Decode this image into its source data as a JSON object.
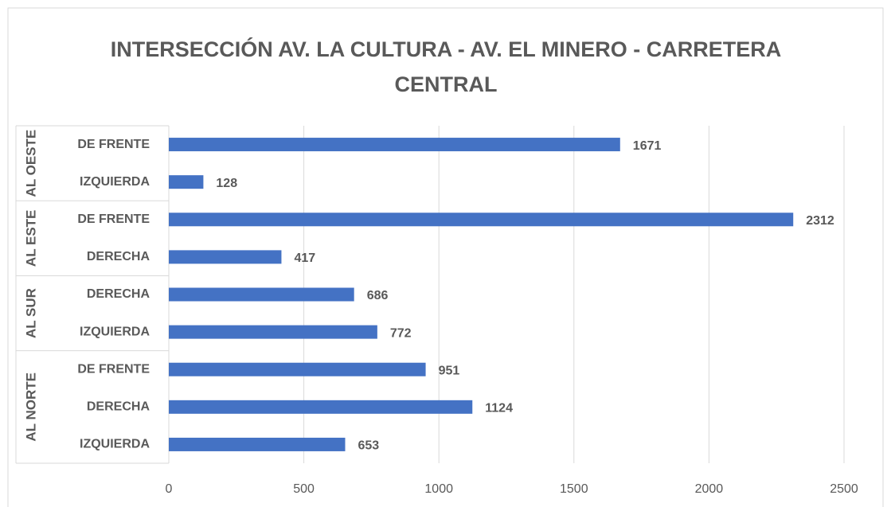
{
  "chart_data": {
    "type": "hbar",
    "title": "INTERSECCIÓN AV. LA CULTURA - AV. EL MINERO - CARRETERA CENTRAL",
    "groups": [
      {
        "name": "AL OESTE",
        "categories": [
          "DE FRENTE",
          "IZQUIERDA"
        ],
        "values": [
          1671,
          128
        ]
      },
      {
        "name": "AL ESTE",
        "categories": [
          "DE FRENTE",
          "DERECHA"
        ],
        "values": [
          2312,
          417
        ]
      },
      {
        "name": "AL SUR",
        "categories": [
          "DERECHA",
          "IZQUIERDA"
        ],
        "values": [
          686,
          772
        ]
      },
      {
        "name": "AL NORTE",
        "categories": [
          "DE FRENTE",
          "DERECHA",
          "IZQUIERDA"
        ],
        "values": [
          951,
          1124,
          653
        ]
      }
    ],
    "color": "#4472c4",
    "xlim": [
      0,
      2500
    ],
    "xticks": [
      0,
      500,
      1000,
      1500,
      2000,
      2500
    ],
    "grid": true
  }
}
